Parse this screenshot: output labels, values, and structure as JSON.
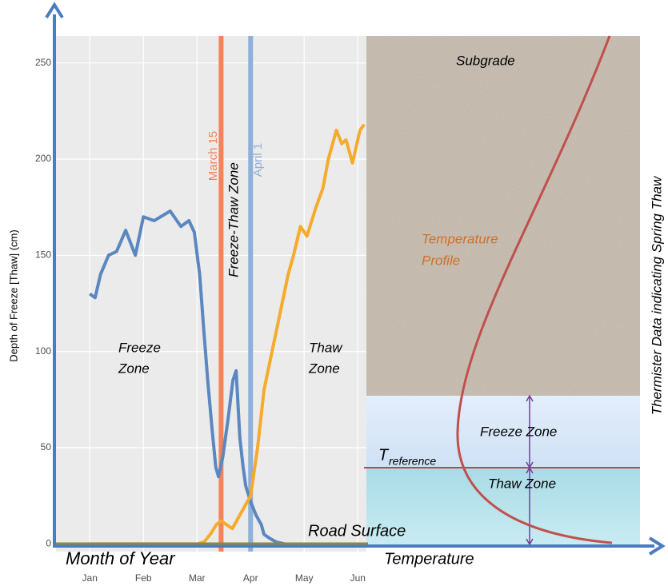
{
  "chart_data": {
    "type": "line",
    "y_label": "Depth of Freeze [Thaw] (cm)",
    "x_label": "Month of Year",
    "xlim": [
      0.37,
      6.16
    ],
    "xticks": [
      {
        "value": 1,
        "label": "Jan"
      },
      {
        "value": 2,
        "label": "Feb"
      },
      {
        "value": 3,
        "label": "Mar"
      },
      {
        "value": 4,
        "label": "Apr"
      },
      {
        "value": 5,
        "label": "May"
      },
      {
        "value": 6,
        "label": "Jun"
      }
    ],
    "ylim": [
      -4,
      264
    ],
    "yticks": [
      0,
      50,
      100,
      150,
      200,
      250
    ],
    "grid": true,
    "series": [
      {
        "name": "Freeze",
        "color": "#5b87c0",
        "x": [
          1.0,
          1.1,
          1.2,
          1.35,
          1.5,
          1.67,
          1.85,
          2.0,
          2.2,
          2.5,
          2.7,
          2.85,
          2.95,
          3.05,
          3.13,
          3.2,
          3.28,
          3.35,
          3.4,
          3.48,
          3.58,
          3.67,
          3.73,
          3.8,
          3.86,
          3.91,
          4.0,
          4.1,
          4.2,
          4.25,
          4.35,
          4.48,
          4.63
        ],
        "values": [
          130,
          128,
          140,
          150,
          152,
          163,
          150,
          170,
          168,
          173,
          165,
          168,
          162,
          140,
          110,
          85,
          60,
          40,
          35,
          45,
          65,
          85,
          90,
          55,
          40,
          30,
          22,
          15,
          10,
          5,
          3,
          1,
          0
        ]
      },
      {
        "name": "Thaw",
        "color": "#f5ab2b",
        "x": [
          1.0,
          2.5,
          3.0,
          3.13,
          3.25,
          3.36,
          3.45,
          3.55,
          3.66,
          3.8,
          3.9,
          4.0,
          4.13,
          4.25,
          4.4,
          4.55,
          4.7,
          4.8,
          4.93,
          5.05,
          5.22,
          5.35,
          5.45,
          5.6,
          5.7,
          5.78,
          5.9,
          6.04,
          6.12
        ],
        "values": [
          0,
          0,
          0,
          1,
          5,
          10,
          12,
          10,
          8,
          15,
          20,
          25,
          50,
          80,
          100,
          120,
          140,
          150,
          165,
          160,
          175,
          185,
          200,
          215,
          208,
          210,
          198,
          215,
          218
        ]
      }
    ],
    "vlines": [
      {
        "x": 3.45,
        "label": "March 15",
        "color": "#f4825a"
      },
      {
        "x": 4.0,
        "label": "April 1",
        "color": "#8fb0d8"
      }
    ],
    "annotations": [
      {
        "lines": [
          "Freeze",
          "Zone"
        ]
      },
      {
        "lines": [
          "Thaw",
          "Zone"
        ]
      },
      {
        "lines": [
          "Freeze-Thaw Zone"
        ]
      },
      {
        "lines": [
          "Road Surface"
        ]
      }
    ],
    "profile": {
      "title": "Temperature",
      "layers": [
        "Subgrade",
        "Freeze Zone",
        "Thaw Zone"
      ],
      "curve_label": [
        "Temperature",
        "Profile"
      ],
      "reference": {
        "text": "T",
        "subscript": "reference"
      },
      "side_label": "Thermister  Data indicating Spring Thaw"
    }
  }
}
